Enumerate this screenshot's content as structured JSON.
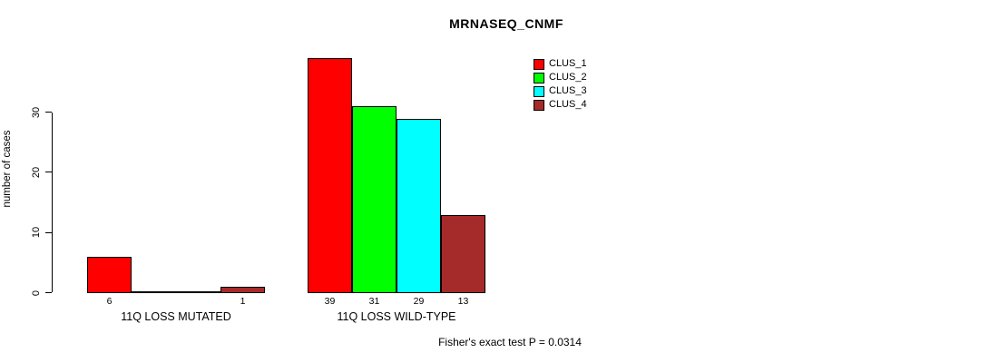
{
  "chart_data": {
    "type": "bar",
    "title": "MRNASEQ_CNMF",
    "ylabel": "number of cases",
    "xlabel": "",
    "yticks": [
      0,
      10,
      20,
      30
    ],
    "ylim": [
      0,
      39
    ],
    "grid": false,
    "legend_position": "top-right",
    "legend": [
      {
        "label": "CLUS_1",
        "color": "#FF0000"
      },
      {
        "label": "CLUS_2",
        "color": "#00FF00"
      },
      {
        "label": "CLUS_3",
        "color": "#00FFFF"
      },
      {
        "label": "CLUS_4",
        "color": "#A52A2A"
      }
    ],
    "series_colors": [
      "#FF0000",
      "#00FF00",
      "#00FFFF",
      "#A52A2A"
    ],
    "groups": [
      {
        "label": "11Q LOSS MUTATED",
        "series": [
          "CLUS_1",
          "CLUS_2",
          "CLUS_3",
          "CLUS_4"
        ],
        "values": [
          6,
          0,
          0,
          1
        ],
        "bar_labels": [
          "6",
          "",
          "",
          "1"
        ]
      },
      {
        "label": "11Q LOSS WILD-TYPE",
        "series": [
          "CLUS_1",
          "CLUS_2",
          "CLUS_3",
          "CLUS_4"
        ],
        "values": [
          39,
          31,
          29,
          13
        ],
        "bar_labels": [
          "39",
          "31",
          "29",
          "13"
        ]
      }
    ],
    "annotation": "Fisher's exact test P = 0.0314",
    "axis_color": "#000000",
    "text_color": "#000000",
    "background": "#FFFFFF"
  }
}
